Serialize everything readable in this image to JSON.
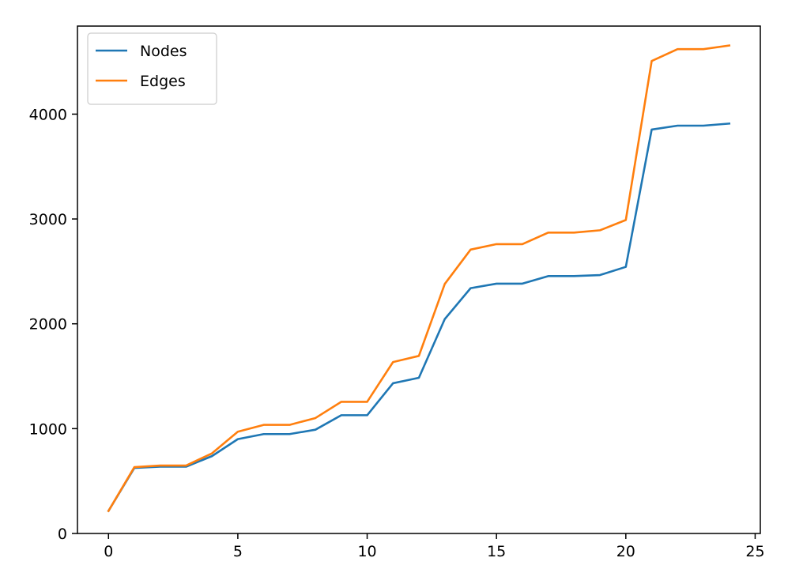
{
  "chart_data": {
    "type": "line",
    "title": "",
    "xlabel": "",
    "ylabel": "",
    "xlim": [
      -1.2,
      25.2
    ],
    "ylim": [
      0,
      4840
    ],
    "x_ticks": [
      0,
      5,
      10,
      15,
      20,
      25
    ],
    "y_ticks": [
      0,
      1000,
      2000,
      3000,
      4000
    ],
    "grid": false,
    "legend_position": "upper-left",
    "x": [
      0,
      1,
      2,
      3,
      4,
      5,
      6,
      7,
      8,
      9,
      10,
      11,
      12,
      13,
      14,
      15,
      16,
      17,
      18,
      19,
      20,
      21,
      22,
      23,
      24
    ],
    "series": [
      {
        "name": "Nodes",
        "color": "#1f77b4",
        "values": [
          215,
          625,
          637,
          637,
          738,
          900,
          948,
          948,
          990,
          1128,
          1128,
          1433,
          1485,
          2045,
          2340,
          2383,
          2383,
          2455,
          2455,
          2465,
          2543,
          3853,
          3890,
          3890,
          3910
        ]
      },
      {
        "name": "Edges",
        "color": "#ff7f0e",
        "values": [
          215,
          633,
          648,
          648,
          764,
          971,
          1036,
          1036,
          1101,
          1256,
          1256,
          1635,
          1694,
          2380,
          2708,
          2760,
          2760,
          2870,
          2870,
          2892,
          2990,
          4507,
          4620,
          4620,
          4655
        ]
      }
    ]
  }
}
